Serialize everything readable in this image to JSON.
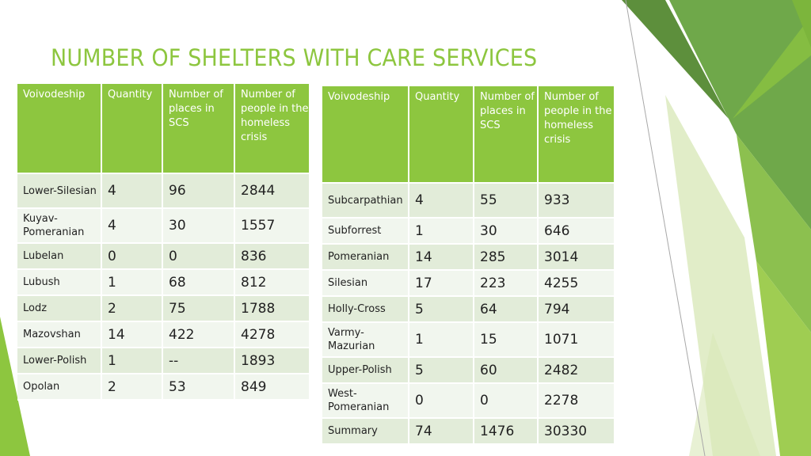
{
  "slide": {
    "title": "NUMBER OF SHELTERS WITH CARE SERVICES",
    "accent_color": "#8dc63f",
    "row_color_odd": "#e2ecd9",
    "row_color_even": "#f1f6ee"
  },
  "table_left": {
    "headers": [
      "Voivodeship",
      "Quantity",
      "Number of places in SCS",
      "Number of people in the homeless crisis"
    ],
    "rows": [
      {
        "voivodeship": "Lower-Silesian",
        "quantity": "4",
        "places": "96",
        "people": "2844"
      },
      {
        "voivodeship": "Kuyav-Pomeranian",
        "quantity": "4",
        "places": "30",
        "people": "1557"
      },
      {
        "voivodeship": "Lubelan",
        "quantity": "0",
        "places": "0",
        "people": "836"
      },
      {
        "voivodeship": "Lubush",
        "quantity": "1",
        "places": "68",
        "people": "812"
      },
      {
        "voivodeship": "Lodz",
        "quantity": "2",
        "places": "75",
        "people": "1788"
      },
      {
        "voivodeship": "Mazovshan",
        "quantity": "14",
        "places": "422",
        "people": "4278"
      },
      {
        "voivodeship": "Lower-Polish",
        "quantity": "1",
        "places": "--",
        "people": "1893"
      },
      {
        "voivodeship": "Opolan",
        "quantity": "2",
        "places": "53",
        "people": "849"
      }
    ]
  },
  "table_right": {
    "headers": [
      "Voivodeship",
      "Quantity",
      "Number of places in SCS",
      "Number of people in the homeless crisis"
    ],
    "rows": [
      {
        "voivodeship": "Subcarpathian",
        "quantity": "4",
        "places": "55",
        "people": "933"
      },
      {
        "voivodeship": "Subforrest",
        "quantity": "1",
        "places": "30",
        "people": "646"
      },
      {
        "voivodeship": "Pomeranian",
        "quantity": "14",
        "places": "285",
        "people": "3014"
      },
      {
        "voivodeship": "Silesian",
        "quantity": "17",
        "places": "223",
        "people": "4255"
      },
      {
        "voivodeship": "Holly-Cross",
        "quantity": "5",
        "places": "64",
        "people": "794"
      },
      {
        "voivodeship": "Varmy-Mazurian",
        "quantity": "1",
        "places": "15",
        "people": "1071"
      },
      {
        "voivodeship": "Upper-Polish",
        "quantity": "5",
        "places": "60",
        "people": "2482"
      },
      {
        "voivodeship": "West-Pomeranian",
        "quantity": "0",
        "places": "0",
        "people": "2278"
      },
      {
        "voivodeship": "Summary",
        "quantity": "74",
        "places": "1476",
        "people": "30330"
      }
    ]
  }
}
